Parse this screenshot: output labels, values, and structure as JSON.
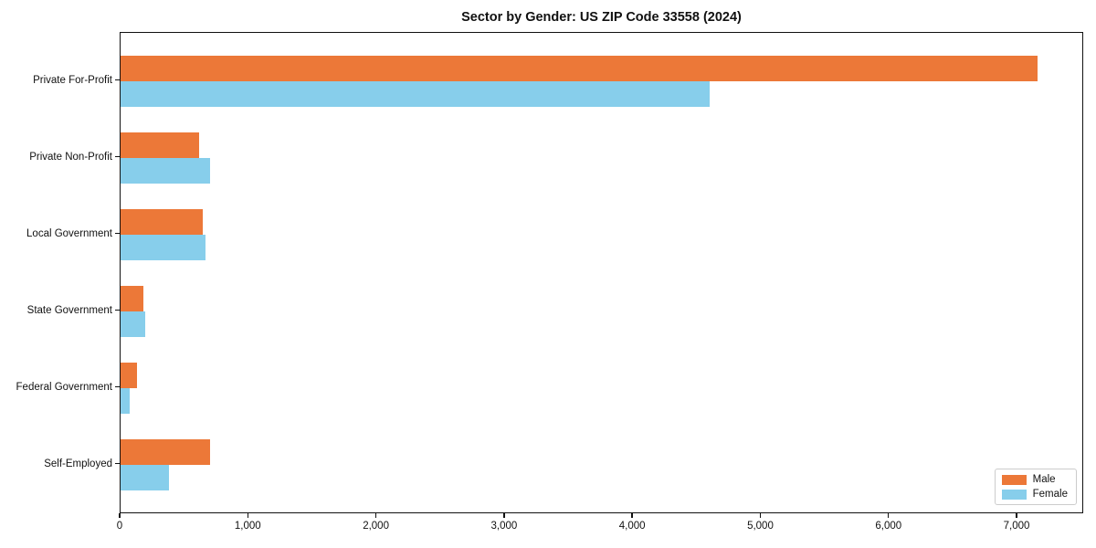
{
  "chart_data": {
    "type": "bar",
    "orientation": "horizontal",
    "title": "Sector by Gender: US ZIP Code 33558 (2024)",
    "categories": [
      "Private For-Profit",
      "Private Non-Profit",
      "Local Government",
      "State Government",
      "Federal Government",
      "Self-Employed"
    ],
    "series": [
      {
        "name": "Male",
        "color": "#ec7838",
        "values": [
          7160,
          615,
          645,
          180,
          125,
          700
        ]
      },
      {
        "name": "Female",
        "color": "#87ceeb",
        "values": [
          4600,
          700,
          660,
          190,
          70,
          375
        ]
      }
    ],
    "xlabel": "",
    "ylabel": "",
    "xlim": [
      0,
      7520
    ],
    "xticks": [
      0,
      1000,
      2000,
      3000,
      4000,
      5000,
      6000,
      7000
    ],
    "xtick_labels": [
      "0",
      "1,000",
      "2,000",
      "3,000",
      "4,000",
      "5,000",
      "6,000",
      "7,000"
    ],
    "grid": false,
    "legend_position": "lower right",
    "spine_color": "#111111",
    "background_color": "#ffffff"
  }
}
